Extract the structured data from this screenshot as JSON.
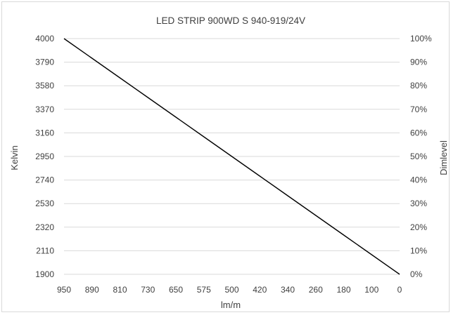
{
  "chart_data": {
    "type": "line",
    "title": "LED STRIP 900WD S 940-919/24V",
    "xlabel": "lm/m",
    "ylabel": "Kelvin",
    "y2label": "Dimlevel",
    "categories": [
      "950",
      "890",
      "810",
      "730",
      "650",
      "575",
      "500",
      "420",
      "340",
      "260",
      "180",
      "100",
      "0"
    ],
    "y_ticks": [
      "1900",
      "2110",
      "2320",
      "2530",
      "2740",
      "2950",
      "3160",
      "3370",
      "3580",
      "3790",
      "4000"
    ],
    "y2_ticks": [
      "0%",
      "10%",
      "20%",
      "30%",
      "40%",
      "50%",
      "60%",
      "70%",
      "80%",
      "90%",
      "100%"
    ],
    "ylim": [
      1900,
      4000
    ],
    "y2lim": [
      0,
      100
    ],
    "grid": true,
    "series": [
      {
        "values": [
          4000,
          3825,
          3650,
          3475,
          3300,
          3125,
          2950,
          2775,
          2600,
          2425,
          2250,
          2075,
          1900
        ]
      }
    ],
    "colors": {
      "line": "#000000",
      "grid": "#d9d9d9",
      "text": "#404040",
      "border": "#d9d9d9"
    }
  }
}
